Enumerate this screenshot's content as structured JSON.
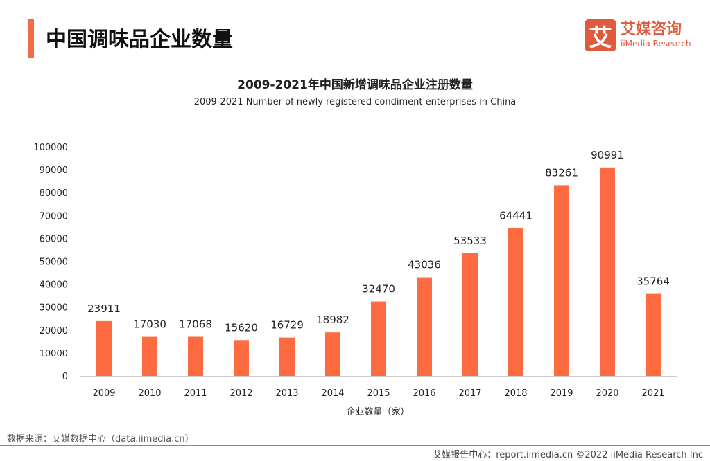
{
  "page_title": "中国调味品企业数量",
  "logo": {
    "icon_char": "艾",
    "cn": "艾媒咨询",
    "en": "iiMedia Research"
  },
  "source": "数据来源：艾媒数据中心（data.iimedia.cn）",
  "footer": "艾媒报告中心：report.iimedia.cn   ©2022  iiMedia Research  Inc",
  "colors": {
    "accent": "#f26b43",
    "bar": "#ff6b40"
  },
  "chart_data": {
    "type": "bar",
    "title": "2009-2021年中国新增调味品企业注册数量",
    "subtitle": "2009-2021 Number of newly registered condiment enterprises in China",
    "xlabel": "企业数量（家）",
    "ylabel": "",
    "ylim": [
      0,
      100000
    ],
    "yticks": [
      0,
      10000,
      20000,
      30000,
      40000,
      50000,
      60000,
      70000,
      80000,
      90000,
      100000
    ],
    "grid": false,
    "categories": [
      "2009",
      "2010",
      "2011",
      "2012",
      "2013",
      "2014",
      "2015",
      "2016",
      "2017",
      "2018",
      "2019",
      "2020",
      "2021"
    ],
    "values": [
      23911,
      17030,
      17068,
      15620,
      16729,
      18982,
      32470,
      43036,
      53533,
      64441,
      83261,
      90991,
      35764
    ]
  }
}
